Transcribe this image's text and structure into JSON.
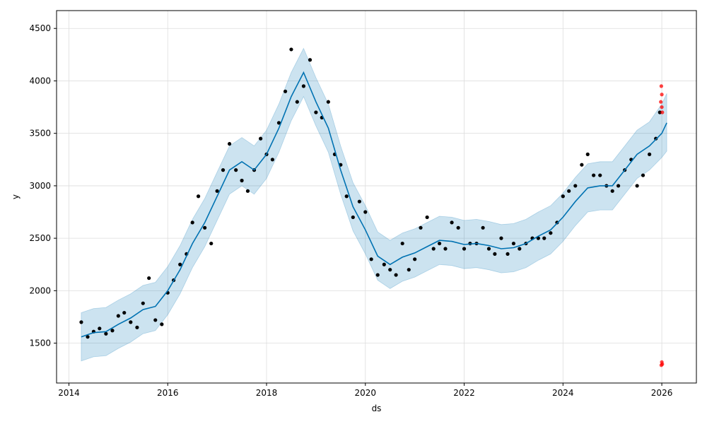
{
  "chart_data": {
    "type": "scatter",
    "title": "",
    "xlabel": "ds",
    "ylabel": "y",
    "xlim": [
      2013.75,
      2026.7
    ],
    "ylim": [
      1120,
      4670
    ],
    "x_ticks": [
      2014,
      2016,
      2018,
      2020,
      2022,
      2024,
      2026
    ],
    "x_tick_labels": [
      "2014",
      "2016",
      "2018",
      "2020",
      "2022",
      "2024",
      "2026"
    ],
    "y_ticks": [
      1500,
      2000,
      2500,
      3000,
      3500,
      4000,
      4500
    ],
    "y_tick_labels": [
      "1500",
      "2000",
      "2500",
      "3000",
      "3500",
      "4000",
      "4500"
    ],
    "grid": true,
    "series": [
      {
        "role": "observed",
        "marker": "dot",
        "color": "#000000",
        "x": [
          2014.25,
          2014.38,
          2014.5,
          2014.62,
          2014.75,
          2014.88,
          2015.0,
          2015.12,
          2015.25,
          2015.38,
          2015.5,
          2015.62,
          2015.75,
          2015.88,
          2016.0,
          2016.12,
          2016.25,
          2016.38,
          2016.5,
          2016.62,
          2016.75,
          2016.88,
          2017.0,
          2017.12,
          2017.25,
          2017.38,
          2017.5,
          2017.62,
          2017.75,
          2017.88,
          2018.0,
          2018.12,
          2018.25,
          2018.38,
          2018.5,
          2018.62,
          2018.75,
          2018.88,
          2019.0,
          2019.12,
          2019.25,
          2019.38,
          2019.5,
          2019.62,
          2019.75,
          2019.88,
          2020.0,
          2020.12,
          2020.25,
          2020.38,
          2020.5,
          2020.62,
          2020.75,
          2020.88,
          2021.0,
          2021.12,
          2021.25,
          2021.38,
          2021.5,
          2021.62,
          2021.75,
          2021.88,
          2022.0,
          2022.12,
          2022.25,
          2022.38,
          2022.5,
          2022.62,
          2022.75,
          2022.88,
          2023.0,
          2023.12,
          2023.25,
          2023.38,
          2023.5,
          2023.62,
          2023.75,
          2023.88,
          2024.0,
          2024.12,
          2024.25,
          2024.38,
          2024.5,
          2024.62,
          2024.75,
          2024.88,
          2025.0,
          2025.12,
          2025.25,
          2025.38,
          2025.5,
          2025.62,
          2025.75,
          2025.88,
          2025.96
        ],
        "y": [
          1700,
          1560,
          1610,
          1640,
          1590,
          1620,
          1760,
          1790,
          1700,
          1650,
          1880,
          2120,
          1720,
          1680,
          1980,
          2100,
          2250,
          2350,
          2650,
          2900,
          2600,
          2450,
          2950,
          3150,
          3400,
          3150,
          3050,
          2950,
          3150,
          3450,
          3300,
          3250,
          3600,
          3900,
          4300,
          3800,
          3950,
          4200,
          3700,
          3650,
          3800,
          3300,
          3200,
          2900,
          2700,
          2850,
          2750,
          2300,
          2150,
          2250,
          2200,
          2150,
          2450,
          2200,
          2300,
          2600,
          2700,
          2400,
          2450,
          2400,
          2650,
          2600,
          2400,
          2450,
          2450,
          2600,
          2400,
          2350,
          2500,
          2350,
          2450,
          2400,
          2450,
          2500,
          2500,
          2500,
          2550,
          2650,
          2900,
          2950,
          3000,
          3200,
          3300,
          3100,
          3100,
          3000,
          2950,
          3000,
          3150,
          3250,
          3000,
          3100,
          3300,
          3450,
          3700
        ]
      },
      {
        "role": "outliers",
        "marker": "dot",
        "color": "#ff0000",
        "x": [
          2025.98,
          2025.99,
          2026.0,
          2026.0,
          2026.01,
          2025.99,
          2026.0,
          2026.01
        ],
        "y": [
          3800,
          3950,
          3870,
          3750,
          3700,
          1290,
          1320,
          1300
        ]
      },
      {
        "role": "forecast",
        "marker": "line",
        "color": "#0072B2",
        "x": [
          2014.25,
          2014.5,
          2014.75,
          2015.0,
          2015.25,
          2015.5,
          2015.75,
          2016.0,
          2016.25,
          2016.5,
          2016.75,
          2017.0,
          2017.25,
          2017.5,
          2017.75,
          2018.0,
          2018.25,
          2018.5,
          2018.75,
          2019.0,
          2019.25,
          2019.5,
          2019.75,
          2020.0,
          2020.25,
          2020.5,
          2020.75,
          2021.0,
          2021.25,
          2021.5,
          2021.75,
          2022.0,
          2022.25,
          2022.5,
          2022.75,
          2023.0,
          2023.25,
          2023.5,
          2023.75,
          2024.0,
          2024.25,
          2024.5,
          2024.75,
          2025.0,
          2025.25,
          2025.5,
          2025.75,
          2026.0,
          2026.1
        ],
        "y": [
          1560,
          1600,
          1610,
          1680,
          1740,
          1820,
          1850,
          2000,
          2200,
          2450,
          2650,
          2900,
          3150,
          3230,
          3150,
          3300,
          3550,
          3850,
          4080,
          3800,
          3550,
          3150,
          2800,
          2580,
          2330,
          2250,
          2320,
          2360,
          2420,
          2480,
          2470,
          2440,
          2450,
          2430,
          2400,
          2410,
          2450,
          2520,
          2580,
          2700,
          2850,
          2980,
          3000,
          3000,
          3150,
          3300,
          3380,
          3500,
          3600
        ]
      },
      {
        "role": "uncertainty-upper",
        "color": "#0072B2",
        "x": [
          2014.25,
          2014.5,
          2014.75,
          2015.0,
          2015.25,
          2015.5,
          2015.75,
          2016.0,
          2016.25,
          2016.5,
          2016.75,
          2017.0,
          2017.25,
          2017.5,
          2017.75,
          2018.0,
          2018.25,
          2018.5,
          2018.75,
          2019.0,
          2019.25,
          2019.5,
          2019.75,
          2020.0,
          2020.25,
          2020.5,
          2020.75,
          2021.0,
          2021.25,
          2021.5,
          2021.75,
          2022.0,
          2022.25,
          2022.5,
          2022.75,
          2023.0,
          2023.25,
          2023.5,
          2023.75,
          2024.0,
          2024.25,
          2024.5,
          2024.75,
          2025.0,
          2025.25,
          2025.5,
          2025.75,
          2026.0,
          2026.1
        ],
        "y": [
          1790,
          1830,
          1840,
          1910,
          1970,
          2050,
          2080,
          2230,
          2430,
          2680,
          2880,
          3130,
          3380,
          3460,
          3380,
          3530,
          3780,
          4080,
          4310,
          4030,
          3780,
          3380,
          3030,
          2810,
          2560,
          2480,
          2550,
          2590,
          2650,
          2710,
          2700,
          2670,
          2680,
          2660,
          2630,
          2640,
          2680,
          2750,
          2810,
          2930,
          3080,
          3210,
          3230,
          3230,
          3380,
          3530,
          3610,
          3780,
          3880
        ]
      },
      {
        "role": "uncertainty-lower",
        "color": "#0072B2",
        "x": [
          2014.25,
          2014.5,
          2014.75,
          2015.0,
          2015.25,
          2015.5,
          2015.75,
          2016.0,
          2016.25,
          2016.5,
          2016.75,
          2017.0,
          2017.25,
          2017.5,
          2017.75,
          2018.0,
          2018.25,
          2018.5,
          2018.75,
          2019.0,
          2019.25,
          2019.5,
          2019.75,
          2020.0,
          2020.25,
          2020.5,
          2020.75,
          2021.0,
          2021.25,
          2021.5,
          2021.75,
          2022.0,
          2022.25,
          2022.5,
          2022.75,
          2023.0,
          2023.25,
          2023.5,
          2023.75,
          2024.0,
          2024.25,
          2024.5,
          2024.75,
          2025.0,
          2025.25,
          2025.5,
          2025.75,
          2026.0,
          2026.1
        ],
        "y": [
          1330,
          1370,
          1380,
          1450,
          1510,
          1590,
          1620,
          1770,
          1970,
          2220,
          2420,
          2670,
          2920,
          3000,
          2920,
          3070,
          3320,
          3620,
          3850,
          3570,
          3320,
          2920,
          2570,
          2350,
          2100,
          2020,
          2090,
          2130,
          2190,
          2250,
          2240,
          2210,
          2220,
          2200,
          2170,
          2180,
          2220,
          2290,
          2350,
          2470,
          2620,
          2750,
          2770,
          2770,
          2920,
          3070,
          3150,
          3270,
          3330
        ]
      }
    ]
  }
}
